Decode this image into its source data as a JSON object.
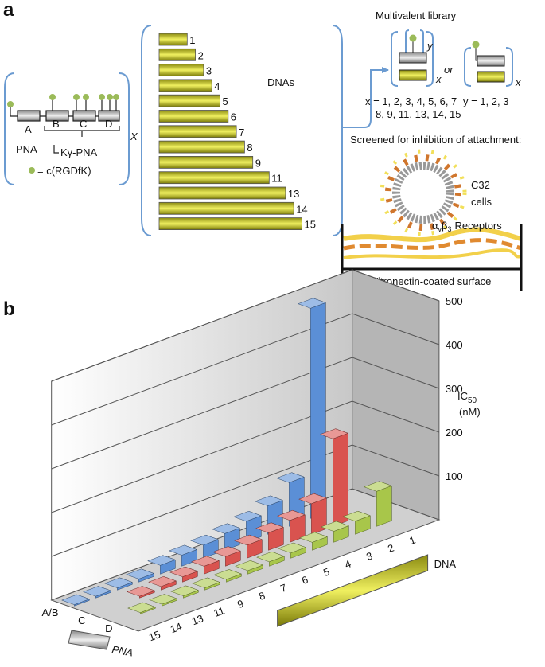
{
  "panel_a": {
    "label": "a",
    "pna_segments": [
      "A",
      "B",
      "C",
      "D"
    ],
    "pna": "PNA",
    "kpna": "Kγ-PNA",
    "rgd": "= c(RGDfK)",
    "times": "X",
    "dnas": "DNAs",
    "dna_lengths": [
      1,
      2,
      3,
      4,
      5,
      6,
      7,
      8,
      9,
      11,
      13,
      14,
      15
    ],
    "library_title": "Multivalent library",
    "y": "y",
    "x": "x",
    "or": "or",
    "x_values_1": "x = 1, 2, 3, 4, 5, 6, 7",
    "x_values_2": "8, 9, 11, 13, 14, 15",
    "y_values": "y = 1, 2, 3",
    "screen": "Screened for inhibition of attachment:",
    "cells_1": "C32",
    "cells_2": "cells",
    "receptor": {
      "alpha": "α",
      "v": "v",
      "beta": "β",
      "three": "3",
      "text": "Receptors"
    },
    "surface": "Vitronectin-coated surface"
  },
  "chart_data": {
    "type": "bar3d",
    "panel_label": "b",
    "y_label": "IC",
    "y_label_sub": "50",
    "y_unit": "(nM)",
    "x_label": "DNA",
    "z_label": "PNA",
    "categories": [
      "15",
      "14",
      "13",
      "11",
      "9",
      "8",
      "7",
      "6",
      "5",
      "4",
      "3",
      "2",
      "1"
    ],
    "series": [
      {
        "name": "A/B",
        "color": "#5b8fd6",
        "values": [
          3,
          4,
          5,
          7,
          20,
          25,
          30,
          38,
          48,
          65,
          100,
          480,
          null
        ]
      },
      {
        "name": "C",
        "color": "#d9534f",
        "values": [
          null,
          null,
          4,
          8,
          12,
          18,
          22,
          30,
          40,
          50,
          70,
          200,
          null
        ]
      },
      {
        "name": "D",
        "color": "#a8c64a",
        "values": [
          null,
          3,
          4,
          5,
          5,
          6,
          8,
          10,
          12,
          18,
          25,
          30,
          80
        ]
      }
    ],
    "ylim": [
      0,
      500
    ],
    "yticks": [
      100,
      200,
      300,
      400,
      500
    ],
    "grid": true
  }
}
